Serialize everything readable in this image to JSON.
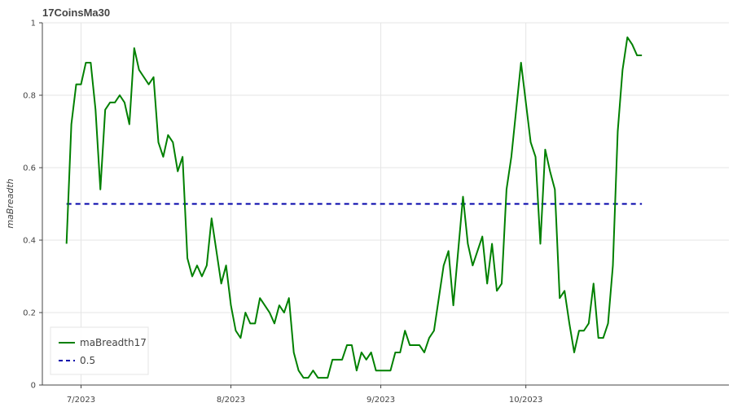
{
  "chart_data": {
    "type": "line",
    "title": "17CoinsMa30",
    "xlabel": "",
    "ylabel": "maBreadth",
    "x_start": "2023-06-28",
    "xlim": [
      "2023-06-23",
      "2023-11-12"
    ],
    "ylim": [
      0,
      1
    ],
    "y_ticks": [
      "0",
      "0.2",
      "0.4",
      "0.6",
      "0.8",
      "1"
    ],
    "x_ticks": [
      {
        "date": "2023-07-01",
        "label": "7/2023"
      },
      {
        "date": "2023-08-01",
        "label": "8/2023"
      },
      {
        "date": "2023-09-01",
        "label": "9/2023"
      },
      {
        "date": "2023-10-01",
        "label": "10/2023"
      }
    ],
    "grid": true,
    "legend_position": "bottom-left",
    "series": [
      {
        "name": "maBreadth17",
        "color": "#008000",
        "style": "solid",
        "values": [
          0.39,
          0.72,
          0.83,
          0.83,
          0.89,
          0.89,
          0.76,
          0.54,
          0.76,
          0.78,
          0.78,
          0.8,
          0.78,
          0.72,
          0.93,
          0.87,
          0.85,
          0.83,
          0.85,
          0.67,
          0.63,
          0.69,
          0.67,
          0.59,
          0.63,
          0.35,
          0.3,
          0.33,
          0.3,
          0.33,
          0.46,
          0.37,
          0.28,
          0.33,
          0.22,
          0.15,
          0.13,
          0.2,
          0.17,
          0.17,
          0.24,
          0.22,
          0.2,
          0.17,
          0.22,
          0.2,
          0.24,
          0.09,
          0.04,
          0.02,
          0.02,
          0.04,
          0.02,
          0.02,
          0.02,
          0.07,
          0.07,
          0.07,
          0.11,
          0.11,
          0.04,
          0.09,
          0.07,
          0.09,
          0.04,
          0.04,
          0.04,
          0.04,
          0.09,
          0.09,
          0.15,
          0.11,
          0.11,
          0.11,
          0.09,
          0.13,
          0.15,
          0.24,
          0.33,
          0.37,
          0.22,
          0.37,
          0.52,
          0.39,
          0.33,
          0.37,
          0.41,
          0.28,
          0.39,
          0.26,
          0.28,
          0.54,
          0.63,
          0.76,
          0.89,
          0.78,
          0.67,
          0.63,
          0.39,
          0.65,
          0.59,
          0.54,
          0.24,
          0.26,
          0.17,
          0.09,
          0.15,
          0.15,
          0.17,
          0.28,
          0.13,
          0.13,
          0.17,
          0.33,
          0.7,
          0.87,
          0.96,
          0.94,
          0.91,
          0.91
        ]
      },
      {
        "name": "0.5",
        "color": "#0000aa",
        "style": "dashed",
        "constant": 0.5
      }
    ]
  }
}
